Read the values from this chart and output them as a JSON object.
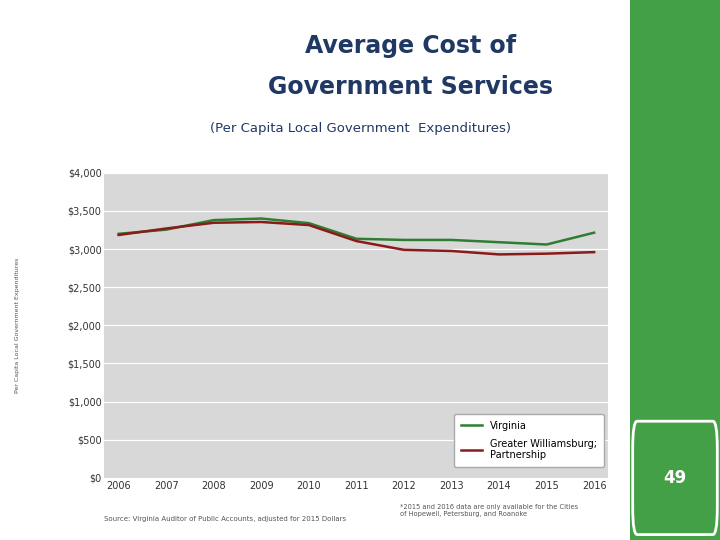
{
  "title_line1": "Average Cost of",
  "title_line2": "Government Services",
  "subtitle": "(Per Capita Local Government  Expenditures)",
  "title_color": "#1F3864",
  "years": [
    2006,
    2007,
    2008,
    2009,
    2010,
    2011,
    2012,
    2013,
    2014,
    2015,
    2016
  ],
  "virginia": [
    3200,
    3255,
    3380,
    3400,
    3340,
    3135,
    3120,
    3120,
    3090,
    3060,
    3215
  ],
  "williamsburg": [
    3185,
    3270,
    3345,
    3355,
    3315,
    3105,
    2990,
    2975,
    2930,
    2940,
    2960
  ],
  "virginia_color": "#2E7D32",
  "williamsburg_color": "#8B1A1A",
  "plot_bg": "#D8D8D8",
  "ylim": [
    0,
    4000
  ],
  "yticks": [
    0,
    500,
    1000,
    1500,
    2000,
    2500,
    3000,
    3500,
    4000
  ],
  "source_text": "Source: Virginia Auditor of Public Accounts, adjusted for 2015 Dollars",
  "footnote_text": "*2015 and 2016 data are only available for the Cities\nof Hopewell, Petersburg, and Roanoke",
  "legend_virginia": "Virginia",
  "legend_williamsburg": "Greater Williamsburg;\nPartnership",
  "page_num": "49",
  "right_bar_color": "#43A047",
  "line_width": 1.8
}
